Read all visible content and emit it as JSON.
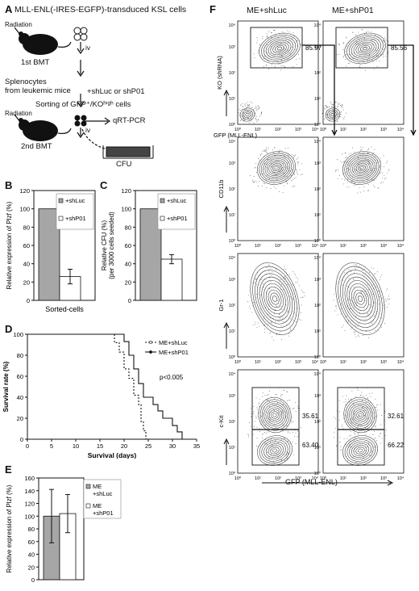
{
  "panels": {
    "A": {
      "letter": "A",
      "title": "MLL-ENL(-IRES-EGFP)-transduced KSL cells",
      "radiation_1": "Radiation",
      "bmt_1": "1st BMT",
      "iv_1": "iv",
      "splenocytes": "Splenocytes",
      "from_mice": "from leukemic mice",
      "treatment": "+shLuc or shP01",
      "sorting": "Sorting of GFP⁺/KOʰⁱᵍʰ cells",
      "radiation_2": "Radiation",
      "bmt_2": "2nd BMT",
      "iv_2": "iv",
      "qrtpcr": "qRT-PCR",
      "cfu": "CFU"
    },
    "B": {
      "letter": "B"
    },
    "C": {
      "letter": "C"
    },
    "D": {
      "letter": "D"
    },
    "E": {
      "letter": "E"
    },
    "F": {
      "letter": "F",
      "col1": "ME+shLuc",
      "col2": "ME+shP01",
      "row1_y": "KO (shRNA)",
      "row1_x": "GFP (MLL-ENL)",
      "row2_y": "CD11b",
      "row3_y": "Gr-1",
      "row4_y": "c-Kit",
      "bottom_x": "GFP (MLL-ENL)",
      "gate_r1_c1": "85.97",
      "gate_r1_c2": "85.56",
      "gate_r4_c1_top": "35.61",
      "gate_r4_c1_bot": "63.40",
      "gate_r4_c2_top": "32.61",
      "gate_r4_c2_bot": "66.22",
      "log_ticks": [
        "10⁰",
        "10¹",
        "10²",
        "10³",
        "10⁴"
      ]
    }
  },
  "chart_data": [
    {
      "id": "B",
      "type": "bar",
      "categories": [
        "+shLuc",
        "+shP01"
      ],
      "values": [
        100,
        26
      ],
      "errors": [
        0,
        8
      ],
      "colors": [
        "#a6a6a6",
        "#ffffff"
      ],
      "ylabel": "Relative expression of Plzf (%)",
      "xlabel": "Sorted-cells",
      "ylim": [
        0,
        120
      ],
      "yticks": [
        0,
        20,
        40,
        60,
        80,
        100,
        120
      ],
      "legend": [
        "+shLuc",
        "+shP01"
      ]
    },
    {
      "id": "C",
      "type": "bar",
      "categories": [
        "+shLuc",
        "+shP01"
      ],
      "values": [
        100,
        45
      ],
      "errors": [
        0,
        5
      ],
      "colors": [
        "#a6a6a6",
        "#ffffff"
      ],
      "ylabel": "Relative CFU (%)",
      "ylabel2": "(per 3000 cells seeded)",
      "ylim": [
        0,
        120
      ],
      "yticks": [
        0,
        20,
        40,
        60,
        80,
        100,
        120
      ],
      "legend": [
        "+shLuc",
        "+shP01"
      ]
    },
    {
      "id": "D",
      "type": "line",
      "step": true,
      "xlabel": "Survival (days)",
      "ylabel": "Survival rate (%)",
      "xlim": [
        0,
        35
      ],
      "ylim": [
        0,
        100
      ],
      "xticks": [
        0,
        5,
        10,
        15,
        20,
        25,
        30,
        35
      ],
      "yticks": [
        0,
        20,
        40,
        60,
        80,
        100
      ],
      "annotation": "p<0.005",
      "series": [
        {
          "name": "ME+shLuc",
          "dashed": true,
          "points": [
            [
              0,
              100
            ],
            [
              18,
              100
            ],
            [
              18,
              92
            ],
            [
              19,
              92
            ],
            [
              19,
              83
            ],
            [
              20,
              83
            ],
            [
              20,
              67
            ],
            [
              21,
              67
            ],
            [
              21,
              58
            ],
            [
              22,
              58
            ],
            [
              22,
              42
            ],
            [
              23,
              42
            ],
            [
              23,
              33
            ],
            [
              23.5,
              33
            ],
            [
              23.5,
              17
            ],
            [
              24,
              17
            ],
            [
              24,
              8
            ],
            [
              24.5,
              8
            ],
            [
              24.5,
              0
            ]
          ]
        },
        {
          "name": "ME+shP01",
          "dashed": false,
          "points": [
            [
              0,
              100
            ],
            [
              20,
              100
            ],
            [
              20,
              93
            ],
            [
              21,
              93
            ],
            [
              21,
              80
            ],
            [
              22,
              80
            ],
            [
              22,
              67
            ],
            [
              23,
              67
            ],
            [
              23,
              53
            ],
            [
              24,
              53
            ],
            [
              24,
              40
            ],
            [
              26,
              40
            ],
            [
              26,
              33
            ],
            [
              27,
              33
            ],
            [
              27,
              27
            ],
            [
              28,
              27
            ],
            [
              28,
              20
            ],
            [
              30,
              20
            ],
            [
              30,
              13
            ],
            [
              31,
              13
            ],
            [
              31,
              7
            ],
            [
              32,
              7
            ],
            [
              32,
              0
            ]
          ]
        }
      ]
    },
    {
      "id": "E",
      "type": "bar",
      "categories": [
        "ME +shLuc",
        "ME +shP01"
      ],
      "values": [
        100,
        104
      ],
      "errors": [
        42,
        30
      ],
      "colors": [
        "#a6a6a6",
        "#ffffff"
      ],
      "ylabel": "Relative expression of Plzf (%)",
      "ylim": [
        0,
        160
      ],
      "yticks": [
        0,
        20,
        40,
        60,
        80,
        100,
        120,
        140,
        160
      ],
      "legend": [
        "ME +shLuc",
        "ME +shP01"
      ]
    }
  ]
}
